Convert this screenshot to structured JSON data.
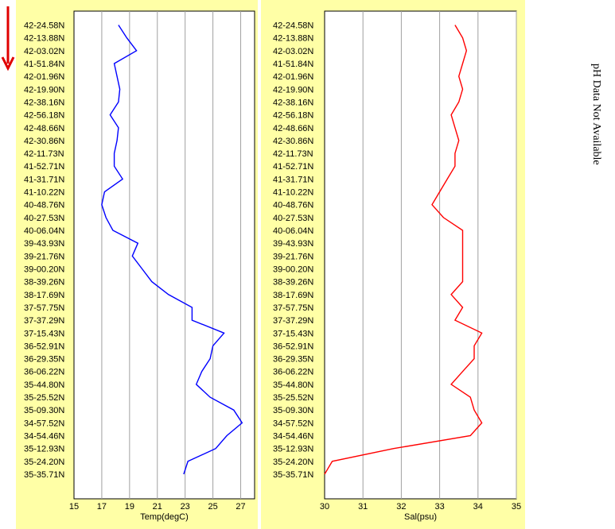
{
  "side_note": "pH Data Not Available",
  "colors": {
    "panel_bg": "#ffffa6",
    "temp_line": "#0000ff",
    "sal_line": "#ff0000",
    "arrow": "#e00000",
    "grid": "#a0a0a0"
  },
  "lat_labels": [
    "42-24.58N",
    "42-13.88N",
    "42-03.02N",
    "41-51.84N",
    "42-01.96N",
    "42-19.90N",
    "42-38.16N",
    "42-56.18N",
    "42-48.66N",
    "42-30.86N",
    "42-11.73N",
    "41-52.71N",
    "41-31.71N",
    "41-10.22N",
    "40-48.76N",
    "40-27.53N",
    "40-06.04N",
    "39-43.93N",
    "39-21.76N",
    "39-00.20N",
    "38-39.26N",
    "38-17.69N",
    "37-57.75N",
    "37-37.29N",
    "37-15.43N",
    "36-52.91N",
    "36-29.35N",
    "36-06.22N",
    "35-44.80N",
    "35-25.52N",
    "35-09.30N",
    "34-57.52N",
    "34-54.46N",
    "35-12.93N",
    "35-24.20N",
    "35-35.71N"
  ],
  "chart_data": [
    {
      "type": "line",
      "xlabel": "Temp(degC)",
      "xlim": [
        15,
        28
      ],
      "xticks": [
        15,
        17,
        19,
        21,
        23,
        25,
        27
      ],
      "ylabel": "",
      "y_categories": [
        "42-24.58N",
        "42-13.88N",
        "42-03.02N",
        "41-51.84N",
        "42-01.96N",
        "42-19.90N",
        "42-38.16N",
        "42-56.18N",
        "42-48.66N",
        "42-30.86N",
        "42-11.73N",
        "41-52.71N",
        "41-31.71N",
        "41-10.22N",
        "40-48.76N",
        "40-27.53N",
        "40-06.04N",
        "39-43.93N",
        "39-21.76N",
        "39-00.20N",
        "38-39.26N",
        "38-17.69N",
        "37-57.75N",
        "37-37.29N",
        "37-15.43N",
        "36-52.91N",
        "36-29.35N",
        "36-06.22N",
        "35-44.80N",
        "35-25.52N",
        "35-09.30N",
        "34-57.52N",
        "34-54.46N",
        "35-12.93N",
        "35-24.20N",
        "35-35.71N"
      ],
      "grid": true,
      "series": [
        {
          "values": [
            18.2,
            18.8,
            19.5,
            17.9,
            18.1,
            18.3,
            18.2,
            17.6,
            18.2,
            18.1,
            17.9,
            17.9,
            18.5,
            17.2,
            17.0,
            17.3,
            17.8,
            19.6,
            19.2,
            19.9,
            20.6,
            21.8,
            23.5,
            23.5,
            25.8,
            25.0,
            24.8,
            24.2,
            23.8,
            24.8,
            26.5,
            27.1,
            26.0,
            25.2,
            23.2,
            22.9
          ]
        }
      ]
    },
    {
      "type": "line",
      "xlabel": "Sal(psu)",
      "xlim": [
        30,
        35
      ],
      "xticks": [
        30,
        31,
        32,
        33,
        34,
        35
      ],
      "ylabel": "",
      "y_categories": [
        "42-24.58N",
        "42-13.88N",
        "42-03.02N",
        "41-51.84N",
        "42-01.96N",
        "42-19.90N",
        "42-38.16N",
        "42-56.18N",
        "42-48.66N",
        "42-30.86N",
        "42-11.73N",
        "41-52.71N",
        "41-31.71N",
        "41-10.22N",
        "40-48.76N",
        "40-27.53N",
        "40-06.04N",
        "39-43.93N",
        "39-21.76N",
        "39-00.20N",
        "38-39.26N",
        "38-17.69N",
        "37-57.75N",
        "37-37.29N",
        "37-15.43N",
        "36-52.91N",
        "36-29.35N",
        "36-06.22N",
        "35-44.80N",
        "35-25.52N",
        "35-09.30N",
        "34-57.52N",
        "34-54.46N",
        "35-12.93N",
        "35-24.20N",
        "35-35.71N"
      ],
      "grid": true,
      "series": [
        {
          "values": [
            33.4,
            33.6,
            33.7,
            33.6,
            33.5,
            33.6,
            33.5,
            33.3,
            33.4,
            33.5,
            33.4,
            33.4,
            33.2,
            33.0,
            32.8,
            33.1,
            33.6,
            33.6,
            33.6,
            33.6,
            33.6,
            33.3,
            33.6,
            33.4,
            34.1,
            33.9,
            33.9,
            33.6,
            33.3,
            33.8,
            33.9,
            34.1,
            33.8,
            31.8,
            30.2,
            30.0
          ]
        }
      ]
    }
  ]
}
